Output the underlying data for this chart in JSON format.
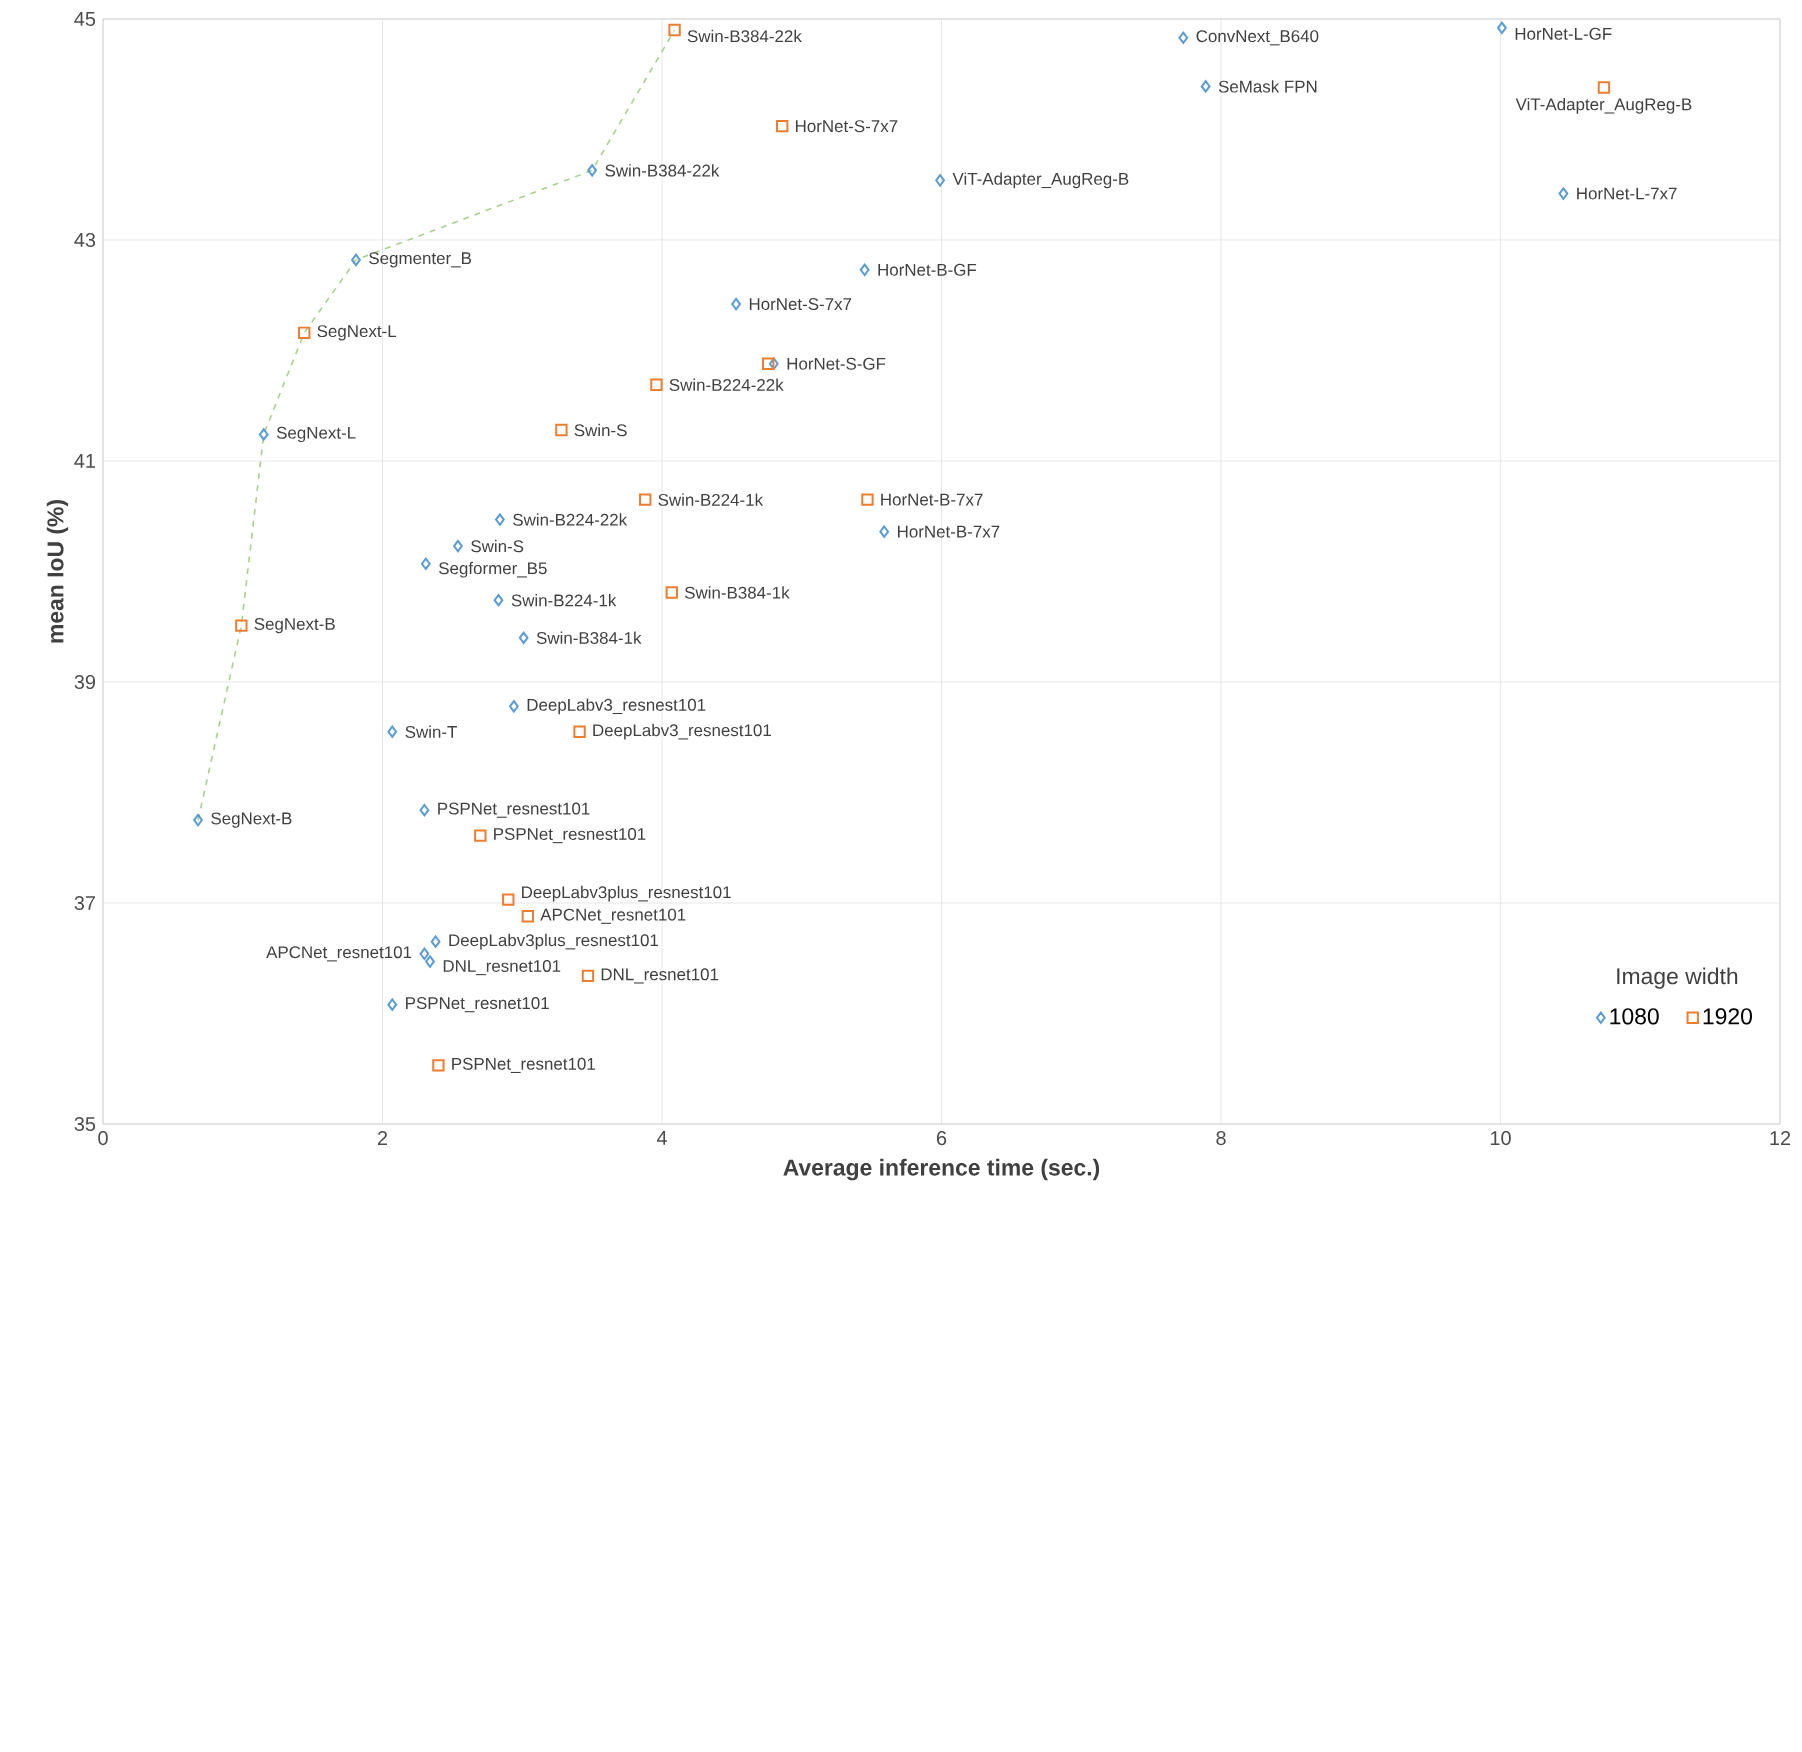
{
  "chart_data": {
    "type": "scatter",
    "xlabel": "Average inference time (sec.)",
    "ylabel": "mean IoU (%)",
    "xlim": [
      0,
      12
    ],
    "ylim": [
      35,
      45
    ],
    "xticks": [
      0,
      2,
      4,
      6,
      8,
      10,
      12
    ],
    "yticks": [
      35,
      37,
      39,
      41,
      43,
      45
    ],
    "grid": true,
    "legend": "bottom right",
    "legend_title": "Image width",
    "series": [
      {
        "name": "1080",
        "marker": "diamond",
        "color": "#5b9bd5",
        "x": [
          3.5,
          1.81,
          1.15,
          2.84,
          2.54,
          2.31,
          2.83,
          3.01,
          2.94,
          2.07,
          0.68,
          2.3,
          2.38,
          2.3,
          2.34,
          2.07,
          4.53,
          5.45,
          4.8,
          5.99,
          5.59,
          7.73,
          7.89,
          10.01,
          10.45
        ],
        "values": [
          43.63,
          42.82,
          41.24,
          40.47,
          40.23,
          40.07,
          39.74,
          39.4,
          38.78,
          38.55,
          37.75,
          37.84,
          36.65,
          36.54,
          36.47,
          36.08,
          42.42,
          42.73,
          41.88,
          43.54,
          40.36,
          44.83,
          44.39,
          44.92,
          43.42
        ]
      },
      {
        "name": "1920",
        "marker": "square",
        "color": "#ed7d31",
        "x": [
          4.09,
          4.86,
          1.44,
          3.96,
          4.76,
          3.28,
          3.88,
          5.47,
          4.07,
          0.99,
          3.41,
          2.7,
          2.9,
          3.04,
          3.47,
          2.4,
          10.74
        ],
        "values": [
          44.9,
          44.03,
          42.16,
          41.69,
          41.88,
          41.28,
          40.65,
          40.65,
          39.81,
          39.51,
          38.55,
          37.61,
          37.03,
          36.88,
          36.34,
          35.53,
          44.38
        ]
      },
      {
        "type": "line",
        "marker": "none",
        "line_style": "dashed",
        "color": "#a9d18e",
        "x": [
          0.68,
          0.99,
          1.15,
          1.44,
          1.81,
          3.5,
          4.09
        ],
        "values": [
          37.75,
          39.51,
          41.24,
          42.16,
          42.82,
          43.63,
          44.9
        ]
      }
    ],
    "annotations": [
      {
        "text": "Swin-B384-22k",
        "x": 3.5,
        "y": 43.63
      },
      {
        "text": "Segmenter_B",
        "x": 1.81,
        "y": 42.82
      },
      {
        "text": "SegNext-L",
        "x": 1.15,
        "y": 41.24
      },
      {
        "text": "Swin-B224-22k",
        "x": 2.84,
        "y": 40.47
      },
      {
        "text": "Swin-S",
        "x": 2.54,
        "y": 40.23
      },
      {
        "text": "Segformer_B5",
        "x": 2.31,
        "y": 40.07
      },
      {
        "text": "Swin-B224-1k",
        "x": 2.83,
        "y": 39.74
      },
      {
        "text": "Swin-B384-1k",
        "x": 3.01,
        "y": 39.4
      },
      {
        "text": "DeepLabv3_resnest101",
        "x": 2.94,
        "y": 38.78
      },
      {
        "text": "Swin-T",
        "x": 2.07,
        "y": 38.55
      },
      {
        "text": "SegNext-B",
        "x": 0.68,
        "y": 37.75
      },
      {
        "text": "PSPNet_resnest101",
        "x": 2.3,
        "y": 37.84
      },
      {
        "text": "DeepLabv3plus_resnest101",
        "x": 2.38,
        "y": 36.65
      },
      {
        "text": "APCNet_resnet101",
        "x": 2.3,
        "y": 36.54
      },
      {
        "text": "DNL_resnet101",
        "x": 2.34,
        "y": 36.47
      },
      {
        "text": "PSPNet_resnet101",
        "x": 2.07,
        "y": 36.08
      },
      {
        "text": "HorNet-S-7x7",
        "x": 4.53,
        "y": 42.42
      },
      {
        "text": "HorNet-B-GF",
        "x": 5.45,
        "y": 42.73
      },
      {
        "text": "HorNet-S-GF",
        "x": 4.8,
        "y": 41.88
      },
      {
        "text": "ViT-Adapter_AugReg-B",
        "x": 5.99,
        "y": 43.54
      },
      {
        "text": "HorNet-B-7x7",
        "x": 5.59,
        "y": 40.36
      },
      {
        "text": "ConvNext_B640",
        "x": 7.73,
        "y": 44.83
      },
      {
        "text": "SeMask FPN",
        "x": 7.89,
        "y": 44.39
      },
      {
        "text": "HorNet-L-GF",
        "x": 10.01,
        "y": 44.92
      },
      {
        "text": "HorNet-L-7x7",
        "x": 10.45,
        "y": 43.42
      },
      {
        "text": "Swin-B384-22k",
        "x": 4.09,
        "y": 44.9
      },
      {
        "text": "HorNet-S-7x7",
        "x": 4.86,
        "y": 44.03
      },
      {
        "text": "SegNext-L",
        "x": 1.44,
        "y": 42.16
      },
      {
        "text": "Swin-B224-22k",
        "x": 3.96,
        "y": 41.69
      },
      {
        "text": "Swin-S",
        "x": 3.28,
        "y": 41.28
      },
      {
        "text": "Swin-B224-1k",
        "x": 3.88,
        "y": 40.65
      },
      {
        "text": "HorNet-B-7x7",
        "x": 5.47,
        "y": 40.65
      },
      {
        "text": "Swin-B384-1k",
        "x": 4.07,
        "y": 39.81
      },
      {
        "text": "SegNext-B",
        "x": 0.99,
        "y": 39.51
      },
      {
        "text": "DeepLabv3_resnest101",
        "x": 3.41,
        "y": 38.55
      },
      {
        "text": "PSPNet_resnest101",
        "x": 2.7,
        "y": 37.61
      },
      {
        "text": "DeepLabv3plus_resnest101",
        "x": 2.9,
        "y": 37.03
      },
      {
        "text": "APCNet_resnet101",
        "x": 3.04,
        "y": 36.88
      },
      {
        "text": "DNL_resnet101",
        "x": 3.47,
        "y": 36.34
      },
      {
        "text": "PSPNet_resnet101",
        "x": 2.4,
        "y": 35.53
      },
      {
        "text": "ViT-Adapter_AugReg-B",
        "x": 10.74,
        "y": 44.38
      }
    ]
  }
}
